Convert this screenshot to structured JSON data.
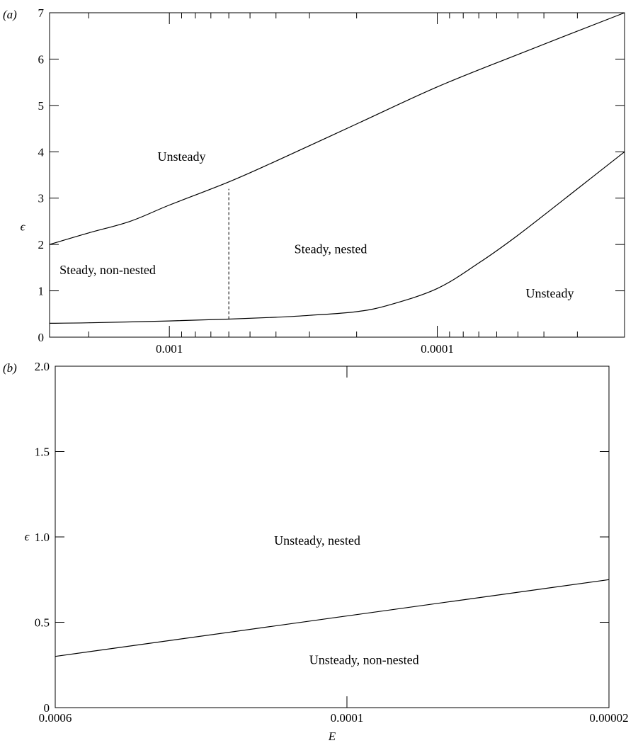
{
  "chart_data": [
    {
      "type": "line",
      "panel_label": "(a)",
      "xscale": "log-reversed",
      "xlim": [
        0.0028,
        2e-05
      ],
      "ylim": [
        0,
        7
      ],
      "ylabel": "ϵ",
      "yticks": [
        "0",
        "1",
        "2",
        "3",
        "4",
        "5",
        "6",
        "7"
      ],
      "xtick_labels": [
        "0.001",
        "0.0001"
      ],
      "series": [
        {
          "x": [
            0.0028,
            0.002,
            0.0014,
            0.001,
            0.0006,
            0.0004,
            0.0002,
            0.0001,
            5e-05,
            2e-05
          ],
          "y": [
            2.0,
            2.25,
            2.5,
            2.85,
            3.35,
            3.8,
            4.6,
            5.4,
            6.1,
            7.0
          ]
        },
        {
          "x": [
            0.0028,
            0.002,
            0.001,
            0.0006,
            0.0004,
            0.0003,
            0.0002,
            0.00015,
            0.0001,
            7e-05,
            5e-05,
            3e-05,
            2e-05
          ],
          "y": [
            0.3,
            0.31,
            0.35,
            0.39,
            0.43,
            0.47,
            0.55,
            0.7,
            1.05,
            1.6,
            2.2,
            3.2,
            4.0
          ]
        }
      ],
      "boundary": {
        "x": 0.0006,
        "y": [
          0.39,
          3.2
        ],
        "style": "dashed"
      },
      "annotations": [
        {
          "text": "Unsteady",
          "x": 0.0009,
          "y": 3.9
        },
        {
          "text": "Steady, nested",
          "x": 0.00025,
          "y": 1.9
        },
        {
          "text": "Steady, non-nested",
          "x": 0.0017,
          "y": 1.45
        },
        {
          "text": "Unsteady",
          "x": 3.8e-05,
          "y": 0.95
        }
      ]
    },
    {
      "type": "line",
      "panel_label": "(b)",
      "xscale": "log-reversed",
      "xlim": [
        0.0006,
        2e-05
      ],
      "ylim": [
        0,
        2
      ],
      "xlabel": "E",
      "ylabel": "ϵ",
      "yticks": [
        "0",
        "0.5",
        "1.0",
        "1.5",
        "2.0"
      ],
      "xtick_labels": [
        "0.0006",
        "0.0001",
        "0.00002"
      ],
      "series": [
        {
          "x": [
            0.0006,
            2e-05
          ],
          "y": [
            0.3,
            0.75
          ]
        }
      ],
      "annotations": [
        {
          "text": "Unsteady, nested",
          "x": 0.00012,
          "y": 0.98
        },
        {
          "text": "Unsteady, non-nested",
          "x": 9e-05,
          "y": 0.28
        }
      ]
    }
  ]
}
